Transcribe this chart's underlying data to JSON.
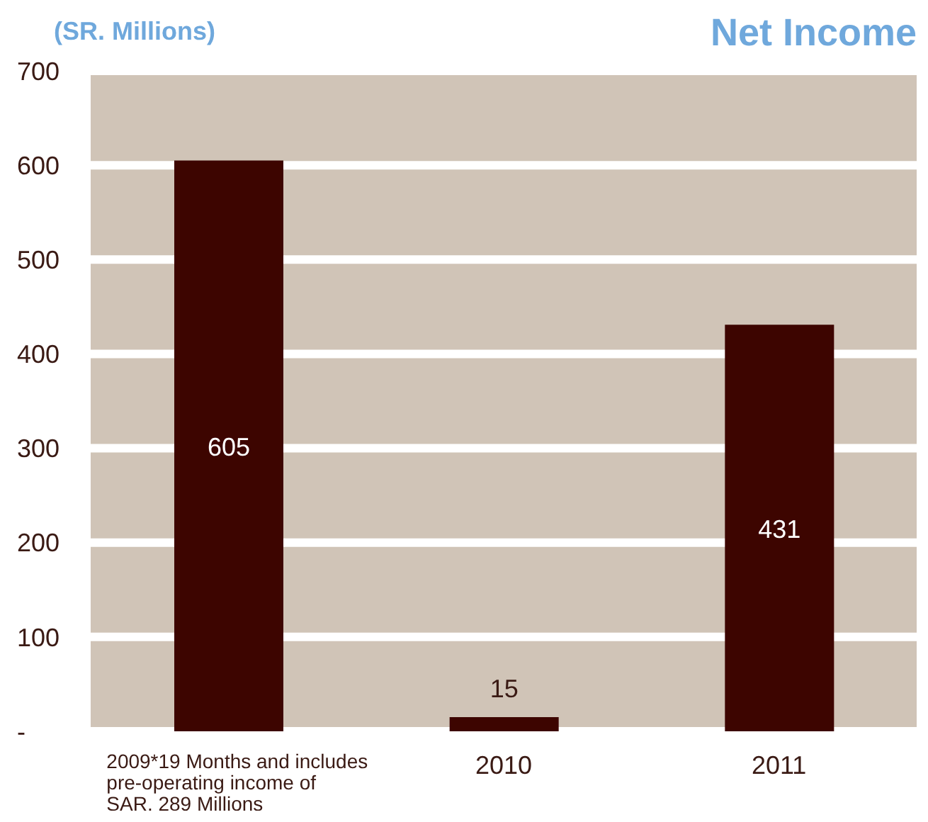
{
  "chart_data": {
    "type": "bar",
    "title": "Net Income",
    "ylabel": "(SR. Millions)",
    "categories": [
      "2009*19 Months and includes pre-operating income of SAR. 289 Millions",
      "2010",
      "2011"
    ],
    "values": [
      605,
      15,
      431
    ],
    "color": "#3d0500",
    "ylim": [
      0,
      700
    ],
    "yticks": [
      {
        "value": 0,
        "label": "-"
      },
      100,
      200,
      300,
      400,
      500,
      600,
      700
    ],
    "grid": "y",
    "data_labels": true
  }
}
